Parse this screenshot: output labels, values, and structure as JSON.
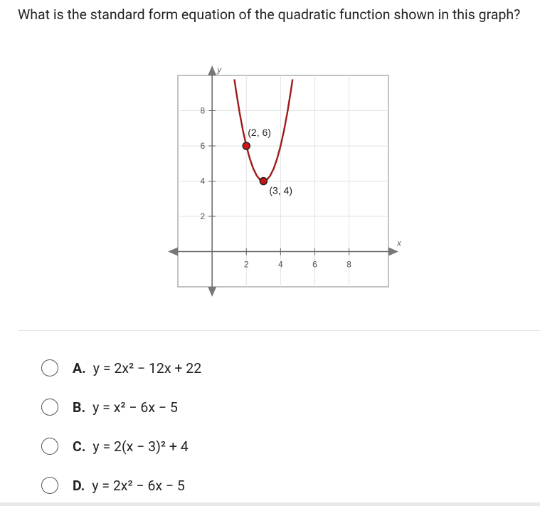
{
  "question": "What is the standard form equation of the quadratic function shown in this graph?",
  "chart_data": {
    "type": "line",
    "x_label": "x",
    "y_label": "y",
    "xlim": [
      -2,
      10.3
    ],
    "ylim": [
      -2,
      10
    ],
    "xticks": [
      2,
      4,
      6,
      8
    ],
    "yticks": [
      2,
      4,
      6,
      8
    ],
    "grid": true,
    "series": [
      {
        "color": "#9e1b1b",
        "x": [
          1.3,
          1.4,
          1.6,
          1.8,
          2,
          2.2,
          2.4,
          2.6,
          2.8,
          3,
          3.2,
          3.4,
          3.6,
          3.8,
          4,
          4.2,
          4.4,
          4.6,
          4.7
        ],
        "values": [
          9.78,
          9.12,
          7.92,
          6.88,
          6,
          5.28,
          4.72,
          4.32,
          4.08,
          4,
          4.08,
          4.32,
          4.72,
          5.28,
          6,
          6.88,
          7.92,
          9.12,
          9.78
        ]
      }
    ],
    "points": {
      "color": "#d11515",
      "x": [
        2,
        3
      ],
      "values": [
        6,
        4
      ],
      "labels": [
        "(2, 6)",
        "(3, 4)"
      ]
    }
  },
  "options": [
    {
      "letter": "A.",
      "equation": "y = 2x² − 12x + 22"
    },
    {
      "letter": "B.",
      "equation": "y = x² − 6x − 5"
    },
    {
      "letter": "C.",
      "equation": "y = 2(x − 3)² + 4"
    },
    {
      "letter": "D.",
      "equation": "y = 2x² − 6x − 5"
    }
  ]
}
